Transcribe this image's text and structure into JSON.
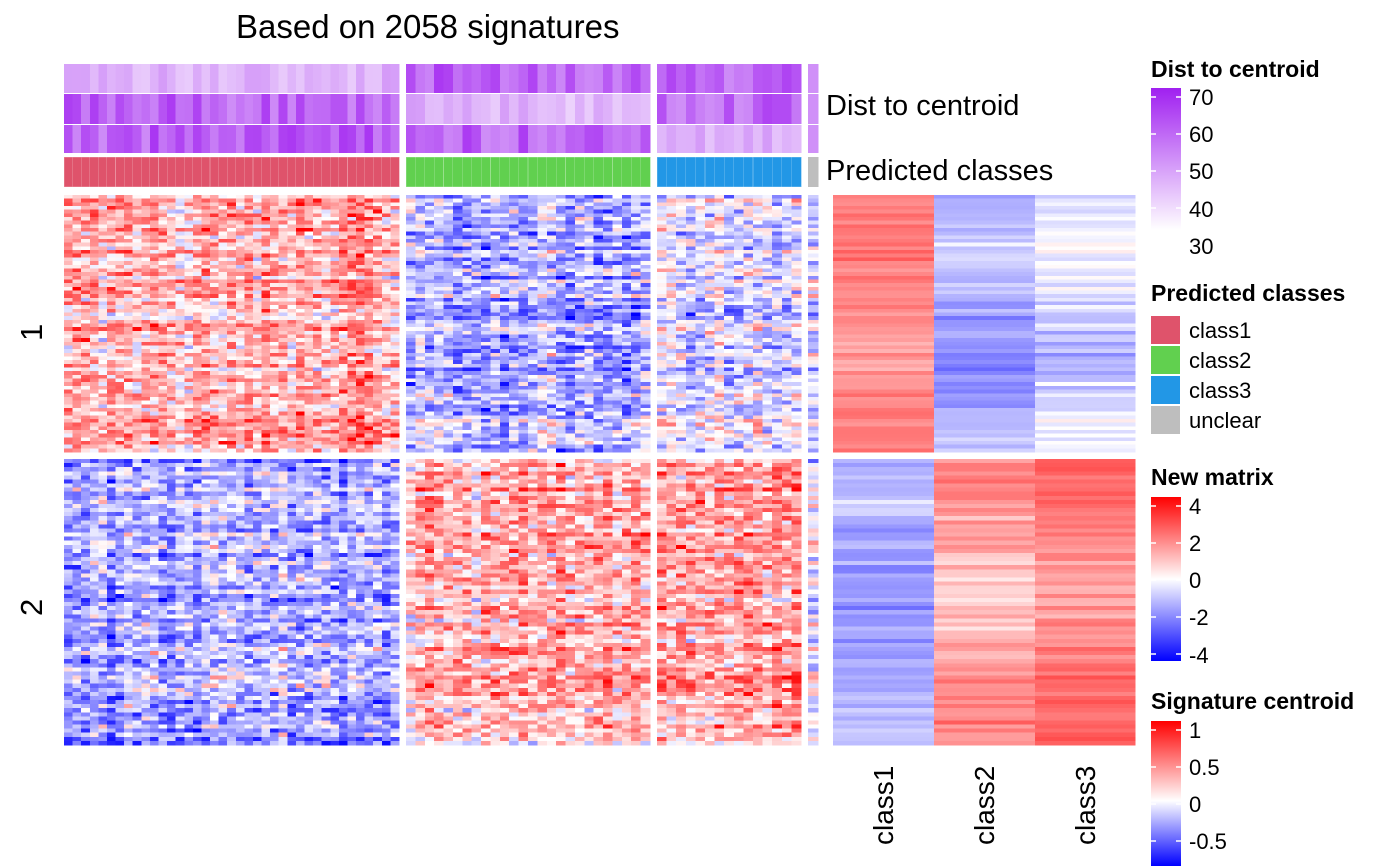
{
  "title": "Based on 2058 signatures",
  "row_titles": [
    "1",
    "2"
  ],
  "annotation_names": {
    "dist": "Dist to centroid",
    "classes": "Predicted classes"
  },
  "colors": {
    "class1": "#DF536B",
    "class2": "#61D04F",
    "class3": "#2297E6",
    "unclear": "#BEBEBE",
    "dist_low": "#FFFFFF",
    "dist_high": "#A020F0",
    "mat_low": "#0000FF",
    "mat_mid": "#FFFFFF",
    "mat_high": "#FF0000"
  },
  "chart_data": {
    "type": "heatmap",
    "title": "Based on 2058 signatures",
    "column_groups": [
      {
        "class": "class1",
        "n_samples": 39
      },
      {
        "class": "class2",
        "n_samples": 26
      },
      {
        "class": "class3",
        "n_samples": 15
      },
      {
        "class": "unclear",
        "n_samples": 1
      }
    ],
    "row_splits": [
      "1",
      "2"
    ],
    "dist_to_centroid_tracks": [
      "class1",
      "class2",
      "class3"
    ],
    "signature_centroid": {
      "columns": [
        "class1",
        "class2",
        "class3"
      ],
      "row_group_1": [
        0.45,
        -0.35,
        -0.15
      ],
      "row_group_2": [
        -0.35,
        0.35,
        0.5
      ]
    },
    "new_matrix_range": [
      -4,
      4
    ],
    "dist_range": [
      30,
      70
    ],
    "centroid_range": [
      -0.5,
      1
    ]
  },
  "legends": [
    {
      "title": "Dist to centroid",
      "ticks": [
        "70",
        "60",
        "50",
        "40",
        "30"
      ]
    },
    {
      "title": "Predicted classes",
      "items": [
        "class1",
        "class2",
        "class3",
        "unclear"
      ]
    },
    {
      "title": "New matrix",
      "ticks": [
        "4",
        "2",
        "0",
        "-2",
        "-4"
      ]
    },
    {
      "title": "Signature centroid",
      "ticks": [
        "1",
        "0.5",
        "0",
        "-0.5"
      ]
    }
  ]
}
